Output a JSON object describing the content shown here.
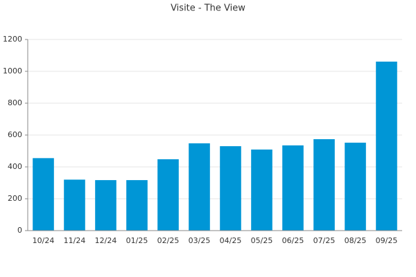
{
  "chart_data": {
    "type": "bar",
    "title": "Visite - The View",
    "categories": [
      "10/24",
      "11/24",
      "12/24",
      "01/25",
      "02/25",
      "03/25",
      "04/25",
      "05/25",
      "06/25",
      "07/25",
      "08/25",
      "09/25"
    ],
    "values": [
      455,
      320,
      317,
      317,
      448,
      548,
      530,
      509,
      535,
      574,
      552,
      1061
    ],
    "color": "#0096d6",
    "ylim": [
      0,
      1200
    ],
    "yticks": [
      0,
      200,
      400,
      600,
      800,
      1000,
      1200
    ],
    "grid": true
  }
}
